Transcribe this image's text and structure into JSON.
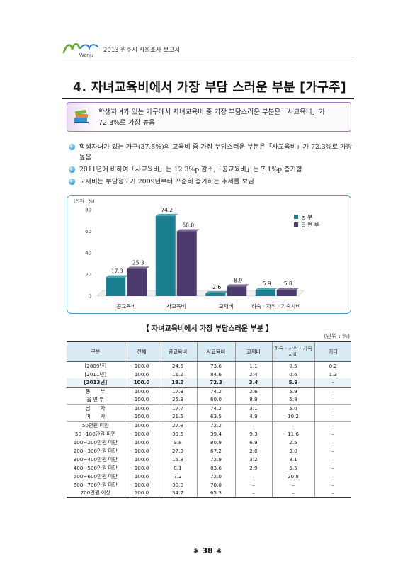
{
  "header": {
    "logo_text": "Wonju",
    "title": "2013 원주시 사회조사 보고서"
  },
  "section_title": "4. 자녀교육비에서 가장 부담 스러운 부분 [가구주]",
  "summary": {
    "icon": "books-icon",
    "text": "학생자녀가 있는 가구에서 자녀교육비 중 가장 부담스러운 부분은「사교육비」가 72.3%로 가장 높음"
  },
  "bullets": [
    "학생자녀가 있는 가구(37.8%)의 교육비 중 가장 부담스러운 부분은「사교육비」가 72.3%로 가장 높음",
    "2011년에 비하여「사교육비」는 12.3%p 감소,「공교육비」는 7.1%p 증가함",
    "교재비는 부담정도가 2009년부터 꾸준히 증가하는 추세를 보임"
  ],
  "chart_data": {
    "type": "bar",
    "unit_label": "(단위 : %)",
    "categories": [
      "공교육비",
      "사교육비",
      "교재비",
      "하숙 · 자취 · 기숙사비"
    ],
    "series": [
      {
        "name": "동 부",
        "values": [
          17.3,
          74.2,
          2.6,
          5.9
        ],
        "color": "#1a7f8e"
      },
      {
        "name": "읍 면 부",
        "values": [
          25.3,
          60.0,
          8.9,
          5.8
        ],
        "color": "#4b3a6b"
      }
    ],
    "value_labels": [
      [
        "17.3",
        "74.2",
        "2.6",
        "5.9"
      ],
      [
        "25.3",
        "60.0",
        "8.9",
        "5.8"
      ]
    ],
    "yticks": [
      "0",
      "20",
      "40",
      "60",
      "80"
    ],
    "ylim": [
      0,
      80
    ],
    "legend_position": "top-right",
    "grid": false
  },
  "table": {
    "title": "【 자녀교육비에서 가장 부담스러운 부분 】",
    "unit": "(단위 : %)",
    "headers": [
      "구분",
      "전체",
      "공교육비",
      "사교육비",
      "교재비",
      "하숙 · 자취 · 기숙사비",
      "기타"
    ],
    "rows": [
      [
        "[2009년]",
        "100.0",
        "24.5",
        "73.6",
        "1.1",
        "0.5",
        "0.2"
      ],
      [
        "[2011년]",
        "100.0",
        "11.2",
        "84.6",
        "2.4",
        "0.6",
        "1.3"
      ],
      [
        "[2013년]",
        "100.0",
        "18.3",
        "72.3",
        "3.4",
        "5.9",
        "–"
      ],
      [
        "동　　부",
        "100.0",
        "17.3",
        "74.2",
        "2.6",
        "5.9",
        "–"
      ],
      [
        "읍 면 부",
        "100.0",
        "25.3",
        "60.0",
        "8.9",
        "5.8",
        "–"
      ],
      [
        "남　　자",
        "100.0",
        "17.7",
        "74.2",
        "3.1",
        "5.0",
        "–"
      ],
      [
        "여　　자",
        "100.0",
        "21.5",
        "63.5",
        "4.9",
        "10.2",
        "–"
      ],
      [
        "50만원 미만",
        "100.0",
        "27.8",
        "72.2",
        "–",
        "–",
        "–"
      ],
      [
        "50∼100만원 미만",
        "100.0",
        "39.6",
        "39.4",
        "9.3",
        "11.6",
        "–"
      ],
      [
        "100∼200만원 미만",
        "100.0",
        "9.8",
        "80.9",
        "6.9",
        "2.5",
        "–"
      ],
      [
        "200∼300만원 미만",
        "100.0",
        "27.9",
        "67.2",
        "2.0",
        "3.0",
        "–"
      ],
      [
        "300∼400만원 미만",
        "100.0",
        "15.8",
        "72.9",
        "3.2",
        "8.1",
        "–"
      ],
      [
        "400∼500만원 미만",
        "100.0",
        "8.1",
        "83.6",
        "2.9",
        "5.5",
        "–"
      ],
      [
        "500∼600만원 미만",
        "100.0",
        "7.2",
        "72.0",
        "–",
        "20.8",
        "–"
      ],
      [
        "600∼700만원 미만",
        "100.0",
        "30.0",
        "70.0",
        "–",
        "–",
        "–"
      ],
      [
        "700만원 이상",
        "100.0",
        "34.7",
        "65.3",
        "–",
        "–",
        "–"
      ]
    ]
  },
  "page_number": "∗ 38 ∗"
}
